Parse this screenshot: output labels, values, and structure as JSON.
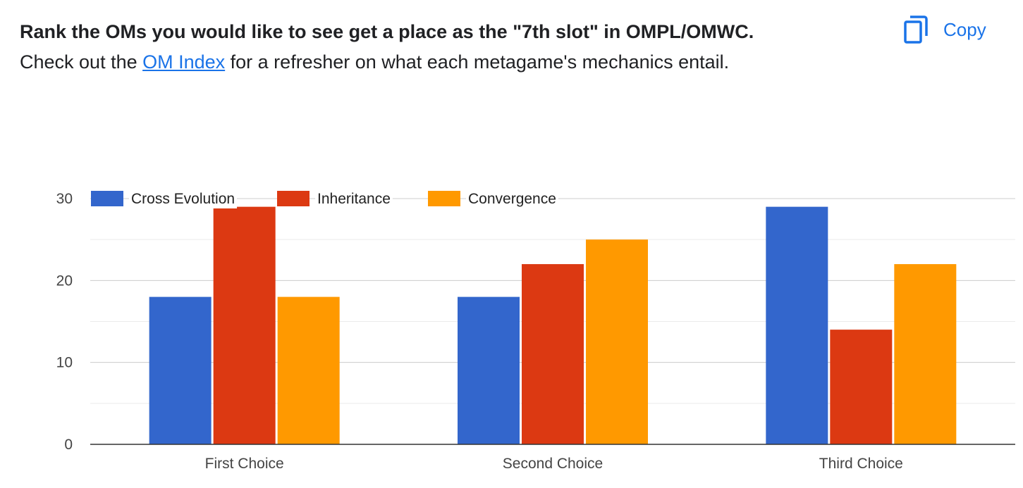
{
  "question": {
    "title": "Rank the OMs you would like to see get a place as the \"7th slot\" in OMPL/OMWC.",
    "desc_before": "Check out the ",
    "desc_link": "OM Index",
    "desc_after": " for a refresher on what each metagame's mechanics entail."
  },
  "copy_button": {
    "label": "Copy",
    "icon": "copy-icon"
  },
  "colors": {
    "accent": "#1a73e8",
    "series": [
      "#3366cc",
      "#dc3912",
      "#ff9900"
    ]
  },
  "chart_data": {
    "type": "bar",
    "categories": [
      "First Choice",
      "Second Choice",
      "Third Choice"
    ],
    "series": [
      {
        "name": "Cross Evolution",
        "values": [
          18,
          18,
          29
        ]
      },
      {
        "name": "Inheritance",
        "values": [
          29,
          22,
          14
        ]
      },
      {
        "name": "Convergence",
        "values": [
          18,
          25,
          22
        ]
      }
    ],
    "ylim": [
      0,
      30
    ],
    "yticks": [
      "0",
      "10",
      "20",
      "30"
    ],
    "gridlines": true,
    "legend": "top-left"
  }
}
